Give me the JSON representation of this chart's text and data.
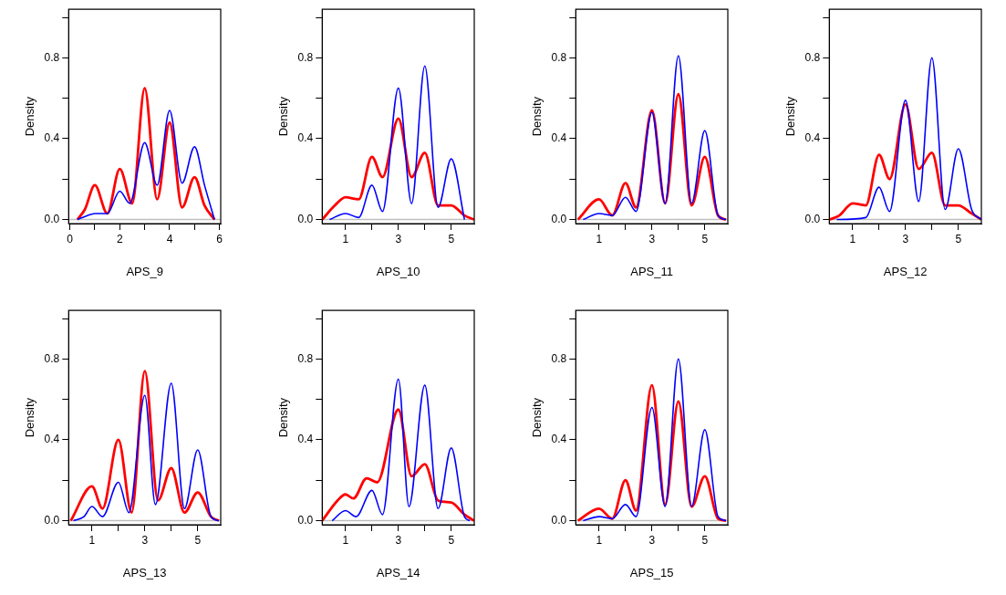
{
  "chart_data": [
    {
      "type": "line",
      "xlabel": "APS_9",
      "ylabel": "Density",
      "marker": "none",
      "xlim": [
        -0.05,
        6.05
      ],
      "ylim": [
        -0.02,
        1.04
      ],
      "xticks": [
        0,
        {
          "value": 1,
          "label": null
        },
        2,
        {
          "value": 3,
          "label": null
        },
        4,
        {
          "value": 5,
          "label": null
        },
        6
      ],
      "yticks": [
        {
          "value": 0,
          "label": "0.0"
        },
        {
          "value": 0.2,
          "label": null
        },
        {
          "value": 0.4,
          "label": "0.4"
        },
        {
          "value": 0.6,
          "label": null
        },
        {
          "value": 0.8,
          "label": "0.8"
        },
        {
          "value": 1,
          "label": null
        }
      ],
      "ref_lines": [
        {
          "axis": "y",
          "value": 0,
          "color": "#bebebe"
        }
      ],
      "series": [
        {
          "color": "#0000ff",
          "x": [
            0.3,
            0.7,
            1,
            1.5,
            2,
            2.4,
            3,
            3.5,
            4,
            4.5,
            5,
            5.4,
            5.8
          ],
          "values": [
            0,
            0.02,
            0.03,
            0.03,
            0.14,
            0.08,
            0.38,
            0.17,
            0.54,
            0.18,
            0.36,
            0.17,
            0
          ]
        },
        {
          "color": "#ff0000",
          "x": [
            0.3,
            0.6,
            1,
            1.5,
            2,
            2.5,
            3,
            3.5,
            4,
            4.5,
            5,
            5.4,
            5.8
          ],
          "values": [
            0,
            0.05,
            0.17,
            0.03,
            0.25,
            0.08,
            0.65,
            0.1,
            0.48,
            0.06,
            0.21,
            0.07,
            0
          ]
        }
      ]
    },
    {
      "type": "line",
      "xlabel": "APS_10",
      "ylabel": "Density",
      "marker": "none",
      "xlim": [
        0.12,
        5.87
      ],
      "ylim": [
        -0.02,
        1.04
      ],
      "xticks": [
        1,
        {
          "value": 2,
          "label": null
        },
        3,
        {
          "value": 4,
          "label": null
        },
        5
      ],
      "yticks": [
        {
          "value": 0,
          "label": "0.0"
        },
        {
          "value": 0.2,
          "label": null
        },
        {
          "value": 0.4,
          "label": "0.4"
        },
        {
          "value": 0.6,
          "label": null
        },
        {
          "value": 0.8,
          "label": "0.8"
        },
        {
          "value": 1,
          "label": null
        }
      ],
      "ref_lines": [
        {
          "axis": "y",
          "value": 0,
          "color": "#bebebe"
        }
      ],
      "series": [
        {
          "color": "#0000ff",
          "x": [
            0.4,
            1,
            1.5,
            2,
            2.4,
            3,
            3.5,
            4,
            4.5,
            5,
            5.5
          ],
          "values": [
            0,
            0.03,
            0.01,
            0.17,
            0.04,
            0.65,
            0.08,
            0.76,
            0.06,
            0.3,
            0
          ]
        },
        {
          "color": "#ff0000",
          "x": [
            0.12,
            0.6,
            1,
            1.5,
            2,
            2.4,
            3,
            3.5,
            4,
            4.5,
            5,
            5.5,
            5.87
          ],
          "values": [
            0,
            0.07,
            0.11,
            0.1,
            0.31,
            0.21,
            0.5,
            0.21,
            0.33,
            0.07,
            0.07,
            0.02,
            0
          ]
        }
      ]
    },
    {
      "type": "line",
      "xlabel": "APS_11",
      "ylabel": "Density",
      "marker": "none",
      "xlim": [
        0.12,
        5.87
      ],
      "ylim": [
        -0.02,
        1.04
      ],
      "xticks": [
        1,
        {
          "value": 2,
          "label": null
        },
        3,
        {
          "value": 4,
          "label": null
        },
        5
      ],
      "yticks": [
        {
          "value": 0,
          "label": "0.0"
        },
        {
          "value": 0.2,
          "label": null
        },
        {
          "value": 0.4,
          "label": "0.4"
        },
        {
          "value": 0.6,
          "label": null
        },
        {
          "value": 0.8,
          "label": "0.8"
        },
        {
          "value": 1,
          "label": null
        }
      ],
      "ref_lines": [
        {
          "axis": "y",
          "value": 0,
          "color": "#bebebe"
        }
      ],
      "series": [
        {
          "color": "#0000ff",
          "x": [
            0.4,
            1,
            1.5,
            2,
            2.4,
            3,
            3.5,
            4,
            4.5,
            5,
            5.5,
            5.8
          ],
          "values": [
            0,
            0.03,
            0.02,
            0.11,
            0.04,
            0.53,
            0.08,
            0.81,
            0.08,
            0.44,
            0.02,
            0
          ]
        },
        {
          "color": "#ff0000",
          "x": [
            0.2,
            1,
            1.5,
            2,
            2.4,
            3,
            3.5,
            4,
            4.5,
            5,
            5.5,
            5.8
          ],
          "values": [
            0,
            0.1,
            0.02,
            0.18,
            0.06,
            0.54,
            0.08,
            0.62,
            0.07,
            0.31,
            0.02,
            0
          ]
        }
      ]
    },
    {
      "type": "line",
      "xlabel": "APS_12",
      "ylabel": "Density",
      "marker": "none",
      "xlim": [
        0.12,
        5.87
      ],
      "ylim": [
        -0.02,
        1.04
      ],
      "xticks": [
        1,
        {
          "value": 2,
          "label": null
        },
        3,
        {
          "value": 4,
          "label": null
        },
        5
      ],
      "yticks": [
        {
          "value": 0,
          "label": "0.0"
        },
        {
          "value": 0.2,
          "label": null
        },
        {
          "value": 0.4,
          "label": "0.4"
        },
        {
          "value": 0.6,
          "label": null
        },
        {
          "value": 0.8,
          "label": "0.8"
        },
        {
          "value": 1,
          "label": null
        }
      ],
      "ref_lines": [
        {
          "axis": "y",
          "value": 0,
          "color": "#bebebe"
        }
      ],
      "series": [
        {
          "color": "#0000ff",
          "x": [
            0.4,
            1.5,
            2,
            2.4,
            3,
            3.5,
            4,
            4.5,
            5,
            5.5,
            5.87
          ],
          "values": [
            0,
            0.01,
            0.16,
            0.04,
            0.59,
            0.09,
            0.8,
            0.05,
            0.35,
            0.05,
            0
          ]
        },
        {
          "color": "#ff0000",
          "x": [
            0.12,
            0.5,
            1,
            1.5,
            2,
            2.4,
            3,
            3.5,
            4,
            4.5,
            5,
            5.5,
            5.87
          ],
          "values": [
            0,
            0.02,
            0.08,
            0.07,
            0.32,
            0.2,
            0.57,
            0.25,
            0.33,
            0.07,
            0.07,
            0.03,
            0
          ]
        }
      ]
    },
    {
      "type": "line",
      "xlabel": "APS_13",
      "ylabel": "Density",
      "marker": "none",
      "xlim": [
        0.12,
        5.87
      ],
      "ylim": [
        -0.02,
        1.04
      ],
      "xticks": [
        1,
        {
          "value": 2,
          "label": null
        },
        3,
        {
          "value": 4,
          "label": null
        },
        5
      ],
      "yticks": [
        {
          "value": 0,
          "label": "0.0"
        },
        {
          "value": 0.2,
          "label": null
        },
        {
          "value": 0.4,
          "label": "0.4"
        },
        {
          "value": 0.6,
          "label": null
        },
        {
          "value": 0.8,
          "label": "0.8"
        },
        {
          "value": 1,
          "label": null
        }
      ],
      "ref_lines": [
        {
          "axis": "y",
          "value": 0,
          "color": "#bebebe"
        }
      ],
      "series": [
        {
          "color": "#0000ff",
          "x": [
            0.3,
            0.7,
            1,
            1.4,
            2,
            2.4,
            3,
            3.4,
            4,
            4.5,
            5,
            5.5,
            5.8
          ],
          "values": [
            0,
            0.02,
            0.07,
            0.02,
            0.19,
            0.04,
            0.62,
            0.08,
            0.68,
            0.06,
            0.35,
            0.02,
            0
          ]
        },
        {
          "color": "#ff0000",
          "x": [
            0.2,
            1,
            1.4,
            2,
            2.5,
            3,
            3.5,
            4,
            4.5,
            5,
            5.5,
            5.8
          ],
          "values": [
            0,
            0.17,
            0.06,
            0.4,
            0.04,
            0.74,
            0.1,
            0.26,
            0.04,
            0.14,
            0.02,
            0
          ]
        }
      ]
    },
    {
      "type": "line",
      "xlabel": "APS_14",
      "ylabel": "Density",
      "marker": "none",
      "xlim": [
        0.12,
        5.87
      ],
      "ylim": [
        -0.02,
        1.04
      ],
      "xticks": [
        1,
        {
          "value": 2,
          "label": null
        },
        3,
        {
          "value": 4,
          "label": null
        },
        5
      ],
      "yticks": [
        {
          "value": 0,
          "label": "0.0"
        },
        {
          "value": 0.2,
          "label": null
        },
        {
          "value": 0.4,
          "label": "0.4"
        },
        {
          "value": 0.6,
          "label": null
        },
        {
          "value": 0.8,
          "label": "0.8"
        },
        {
          "value": 1,
          "label": null
        }
      ],
      "ref_lines": [
        {
          "axis": "y",
          "value": 0,
          "color": "#bebebe"
        }
      ],
      "series": [
        {
          "color": "#0000ff",
          "x": [
            0.5,
            1,
            1.4,
            2,
            2.4,
            3,
            3.4,
            4,
            4.5,
            5,
            5.5,
            5.7
          ],
          "values": [
            0,
            0.05,
            0.02,
            0.15,
            0.03,
            0.7,
            0.07,
            0.67,
            0.06,
            0.36,
            0.02,
            0
          ]
        },
        {
          "color": "#ff0000",
          "x": [
            0.12,
            0.7,
            1,
            1.3,
            1.8,
            2.2,
            3,
            3.5,
            4,
            4.5,
            5,
            5.5,
            5.87
          ],
          "values": [
            0,
            0.1,
            0.13,
            0.11,
            0.21,
            0.19,
            0.55,
            0.22,
            0.28,
            0.1,
            0.09,
            0.03,
            0
          ]
        }
      ]
    },
    {
      "type": "line",
      "xlabel": "APS_15",
      "ylabel": "Density",
      "marker": "none",
      "xlim": [
        0.12,
        5.87
      ],
      "ylim": [
        -0.02,
        1.04
      ],
      "xticks": [
        1,
        {
          "value": 2,
          "label": null
        },
        3,
        {
          "value": 4,
          "label": null
        },
        5
      ],
      "yticks": [
        {
          "value": 0,
          "label": "0.0"
        },
        {
          "value": 0.2,
          "label": null
        },
        {
          "value": 0.4,
          "label": "0.4"
        },
        {
          "value": 0.6,
          "label": null
        },
        {
          "value": 0.8,
          "label": "0.8"
        },
        {
          "value": 1,
          "label": null
        }
      ],
      "ref_lines": [
        {
          "axis": "y",
          "value": 0,
          "color": "#bebebe"
        }
      ],
      "series": [
        {
          "color": "#0000ff",
          "x": [
            0.4,
            1,
            1.5,
            2,
            2.4,
            3,
            3.5,
            4,
            4.5,
            5,
            5.5,
            5.8
          ],
          "values": [
            0,
            0.02,
            0.01,
            0.08,
            0.02,
            0.56,
            0.07,
            0.8,
            0.07,
            0.45,
            0.02,
            0
          ]
        },
        {
          "color": "#ff0000",
          "x": [
            0.2,
            1,
            1.5,
            2,
            2.4,
            3,
            3.5,
            4,
            4.5,
            5,
            5.5,
            5.8
          ],
          "values": [
            0,
            0.06,
            0.01,
            0.2,
            0.05,
            0.67,
            0.08,
            0.59,
            0.07,
            0.22,
            0.01,
            0
          ]
        }
      ]
    }
  ]
}
